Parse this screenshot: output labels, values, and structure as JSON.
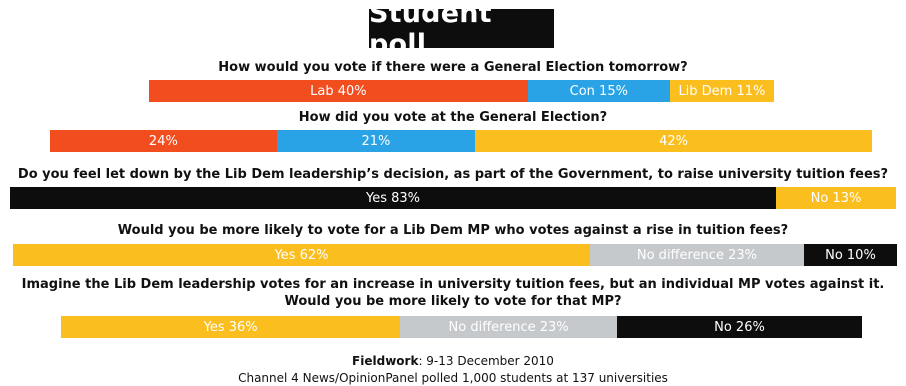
{
  "title": "Student poll",
  "colors": {
    "red": "#f24d1f",
    "blue": "#29a3e6",
    "amber": "#fbbe1f",
    "black": "#0d0d0d",
    "grey": "#c6c9cc",
    "white_text": "#ffffff"
  },
  "chart_data": [
    {
      "type": "bar",
      "question": "How would you vote if there were a General Election tomorrow?",
      "segments": [
        {
          "label": "Lab 40%",
          "value": 40,
          "color": "red"
        },
        {
          "label": "Con 15%",
          "value": 15,
          "color": "blue"
        },
        {
          "label": "Lib Dem 11%",
          "value": 11,
          "color": "amber"
        }
      ]
    },
    {
      "type": "bar",
      "question": "How did you vote at the General Election?",
      "segments": [
        {
          "label": "24%",
          "value": 24,
          "color": "red"
        },
        {
          "label": "21%",
          "value": 21,
          "color": "blue"
        },
        {
          "label": "42%",
          "value": 42,
          "color": "amber"
        }
      ]
    },
    {
      "type": "bar",
      "question": "Do you feel let down by the Lib Dem leadership’s decision, as part of the Government, to raise university tuition fees?",
      "segments": [
        {
          "label": "Yes 83%",
          "value": 83,
          "color": "black"
        },
        {
          "label": "No 13%",
          "value": 13,
          "color": "amber"
        }
      ]
    },
    {
      "type": "bar",
      "question": "Would you be more likely to vote for a Lib Dem MP who votes against a rise in tuition fees?",
      "segments": [
        {
          "label": "Yes 62%",
          "value": 62,
          "color": "amber"
        },
        {
          "label": "No difference 23%",
          "value": 23,
          "color": "grey"
        },
        {
          "label": "No 10%",
          "value": 10,
          "color": "black"
        }
      ]
    },
    {
      "type": "bar",
      "question": "Imagine the Lib Dem leadership votes for an increase in university tuition fees, but an individual MP votes against it.",
      "question_line2": "Would you be more likely to vote for that MP?",
      "segments": [
        {
          "label": "Yes 36%",
          "value": 36,
          "color": "amber"
        },
        {
          "label": "No difference 23%",
          "value": 23,
          "color": "grey"
        },
        {
          "label": "No 26%",
          "value": 26,
          "color": "black"
        }
      ]
    }
  ],
  "footer": {
    "fieldwork_label": "Fieldwork",
    "fieldwork_value": ": 9-13 December 2010",
    "source": "Channel 4 News/OpinionPanel polled 1,000 students at 137 universities"
  }
}
